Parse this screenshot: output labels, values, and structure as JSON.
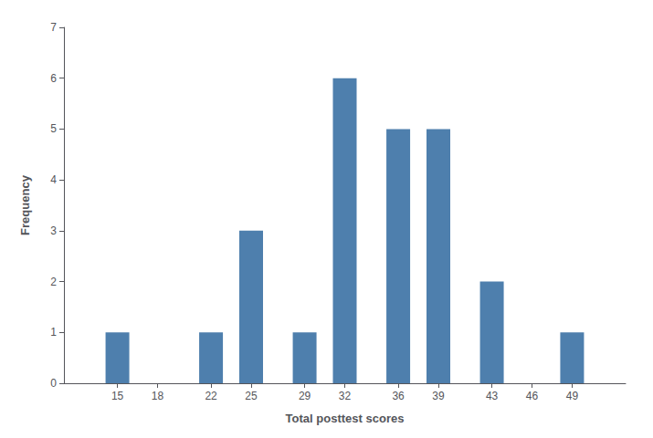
{
  "chart_data": {
    "type": "bar",
    "x": [
      15,
      18,
      22,
      25,
      29,
      32,
      36,
      39,
      43,
      46,
      49
    ],
    "values": [
      1,
      0,
      1,
      3,
      1,
      6,
      5,
      5,
      2,
      0,
      1
    ],
    "color": "#4e7fad",
    "xlabel": "Total posttest scores",
    "ylabel": "Frequency",
    "xlim": [
      11,
      53
    ],
    "xticks": [
      15,
      18,
      22,
      25,
      29,
      32,
      36,
      39,
      43,
      46,
      49
    ],
    "ylim": [
      0,
      7
    ],
    "yticks": [
      0,
      1,
      2,
      3,
      4,
      5,
      6,
      7
    ],
    "grid": false
  }
}
